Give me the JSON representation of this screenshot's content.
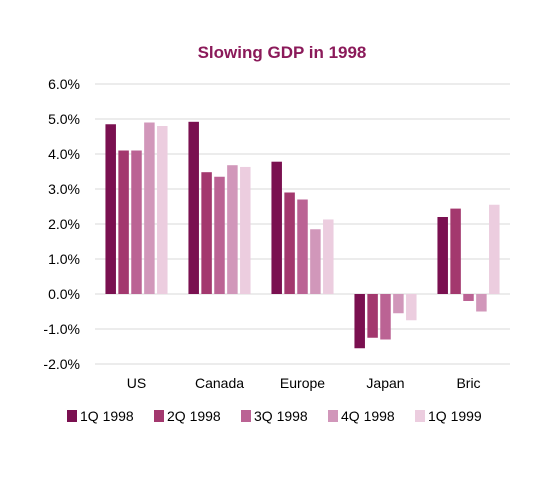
{
  "chart_data": {
    "type": "bar",
    "title": "Slowing GDP in 1998",
    "xlabel": "",
    "ylabel": "",
    "categories": [
      "US",
      "Canada",
      "Europe",
      "Japan",
      "Bric"
    ],
    "series": [
      {
        "name": "1Q 1998",
        "color": "#7A1050",
        "values": [
          4.85,
          4.92,
          3.78,
          -1.55,
          2.2
        ]
      },
      {
        "name": "2Q 1998",
        "color": "#A3386E",
        "values": [
          4.1,
          3.48,
          2.9,
          -1.25,
          2.44
        ]
      },
      {
        "name": "3Q 1998",
        "color": "#BB6394",
        "values": [
          4.1,
          3.35,
          2.7,
          -1.3,
          -0.2
        ]
      },
      {
        "name": "4Q 1998",
        "color": "#D197BA",
        "values": [
          4.9,
          3.68,
          1.85,
          -0.55,
          -0.5
        ]
      },
      {
        "name": "1Q 1999",
        "color": "#ECCDDF",
        "values": [
          4.8,
          3.63,
          2.13,
          -0.75,
          2.55
        ]
      }
    ],
    "ylim": [
      -2,
      6
    ],
    "yticks": [
      "-2.0%",
      "-1.0%",
      "0.0%",
      "1.0%",
      "2.0%",
      "3.0%",
      "4.0%",
      "5.0%",
      "6.0%"
    ],
    "grid": true,
    "legend_position": "bottom"
  }
}
